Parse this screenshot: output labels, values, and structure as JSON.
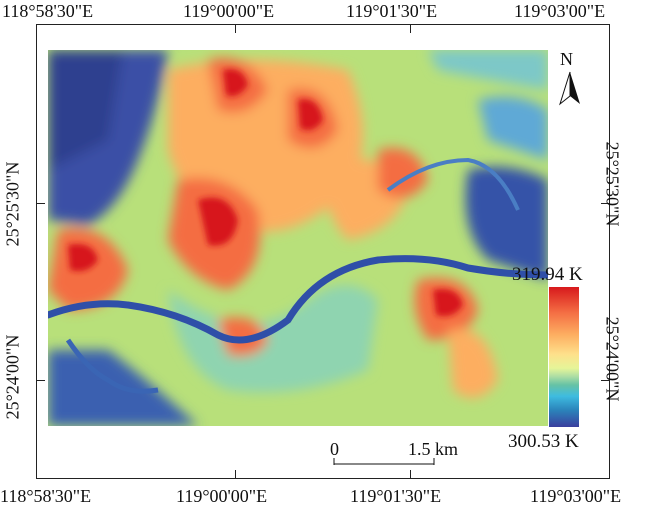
{
  "top_labels": [
    "118°58'30\"E",
    "119°00'00\"E",
    "119°01'30\"E",
    "119°03'00\"E"
  ],
  "bottom_labels": [
    "118°58'30\"E",
    "119°00'00\"E",
    "119°01'30\"E",
    "119°03'00\"E"
  ],
  "left_labels": [
    "25°25'30\"N",
    "25°24'00\"N"
  ],
  "right_labels": [
    "25°25'30\"N",
    "25°24'00\"N"
  ],
  "legend": {
    "max": "319.94 K",
    "min": "300.53 K"
  },
  "north_arrow": {
    "label": "N"
  },
  "scale_bar": {
    "start": "0",
    "end": "1.5 km"
  },
  "colors": {
    "hot": "#d7191c",
    "warm": "#fdae61",
    "mid": "#fee08b",
    "cool": "#66c2a5",
    "cold": "#3a3f9e"
  }
}
